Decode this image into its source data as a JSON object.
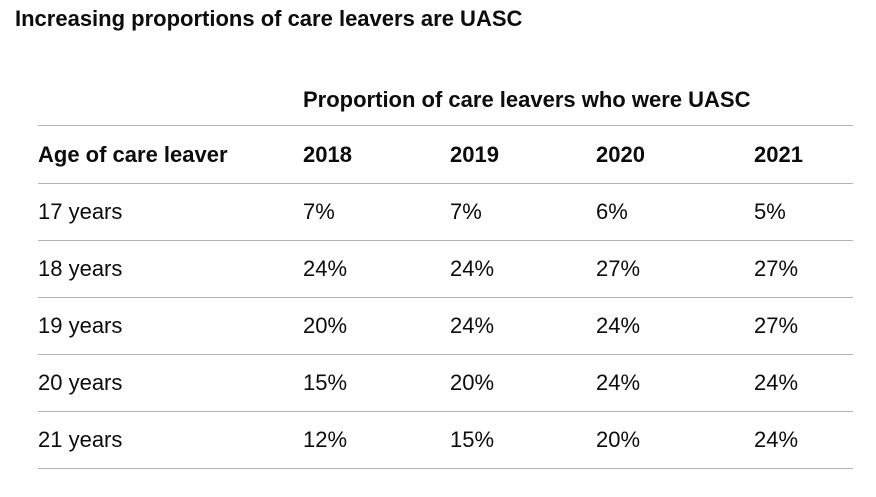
{
  "title": "Increasing proportions of care leavers are UASC",
  "table": {
    "group_header": "Proportion of care leavers who were UASC",
    "headers": [
      "Age of care leaver",
      "2018",
      "2019",
      "2020",
      "2021"
    ],
    "rows": [
      [
        "17 years",
        "7%",
        "7%",
        "6%",
        "5%"
      ],
      [
        "18 years",
        "24%",
        "24%",
        "27%",
        "27%"
      ],
      [
        "19 years",
        "20%",
        "24%",
        "24%",
        "27%"
      ],
      [
        "20 years",
        "15%",
        "20%",
        "24%",
        "24%"
      ],
      [
        "21 years",
        "12%",
        "15%",
        "20%",
        "24%"
      ]
    ]
  }
}
